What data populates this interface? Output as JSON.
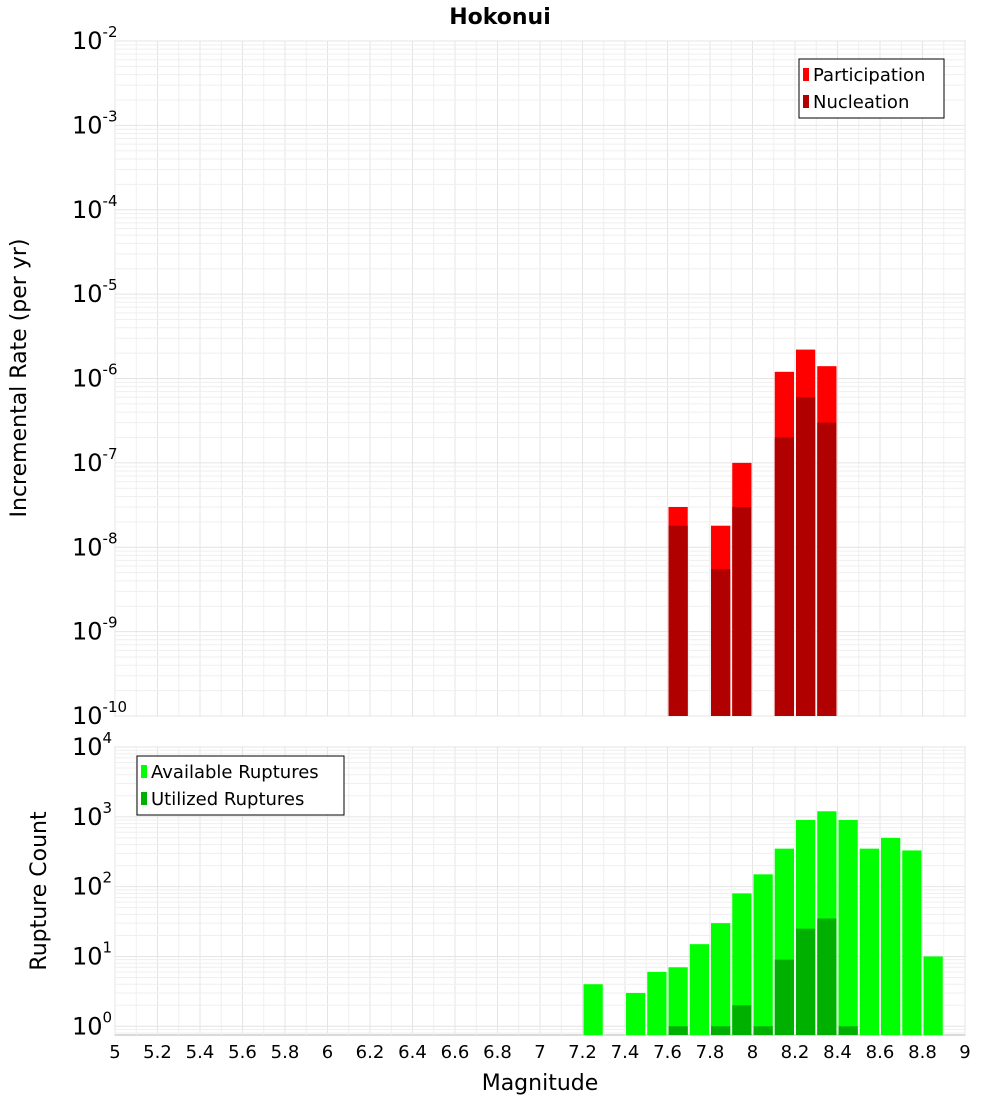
{
  "title": "Hokonui",
  "x_axis": {
    "label": "Magnitude",
    "ticks": [
      "5",
      "5.2",
      "5.4",
      "5.6",
      "5.8",
      "6",
      "6.2",
      "6.4",
      "6.6",
      "6.8",
      "7",
      "7.2",
      "7.4",
      "7.6",
      "7.8",
      "8",
      "8.2",
      "8.4",
      "8.6",
      "8.8",
      "9"
    ]
  },
  "chart_data": [
    {
      "type": "bar",
      "title": "Hokonui",
      "xlabel": "Magnitude",
      "ylabel": "Incremental Rate (per yr)",
      "xlim": [
        5,
        9
      ],
      "ylim": [
        1e-10,
        0.01
      ],
      "yscale": "log",
      "y_ticks": [
        {
          "base": "10",
          "exp": "-2"
        },
        {
          "base": "10",
          "exp": "-3"
        },
        {
          "base": "10",
          "exp": "-4"
        },
        {
          "base": "10",
          "exp": "-5"
        },
        {
          "base": "10",
          "exp": "-6"
        },
        {
          "base": "10",
          "exp": "-7"
        },
        {
          "base": "10",
          "exp": "-8"
        },
        {
          "base": "10",
          "exp": "-9"
        },
        {
          "base": "10",
          "exp": "-10"
        }
      ],
      "grid": true,
      "legend_position": "top-right",
      "bar_width": 0.1,
      "series": [
        {
          "name": "Participation",
          "color": "#ff0000",
          "x": [
            7.65,
            7.85,
            7.95,
            8.15,
            8.25,
            8.35
          ],
          "values": [
            3e-08,
            1.8e-08,
            1e-07,
            1.2e-06,
            2.2e-06,
            1.4e-06
          ]
        },
        {
          "name": "Nucleation",
          "color": "#b00000",
          "x": [
            7.65,
            7.85,
            7.95,
            8.15,
            8.25,
            8.35
          ],
          "values": [
            1.8e-08,
            5.5e-09,
            3e-08,
            2e-07,
            6e-07,
            3e-07
          ]
        }
      ]
    },
    {
      "type": "bar",
      "xlabel": "Magnitude",
      "ylabel": "Rupture Count",
      "xlim": [
        5,
        9
      ],
      "ylim": [
        0.75,
        10000
      ],
      "yscale": "log",
      "y_ticks": [
        {
          "base": "10",
          "exp": "4"
        },
        {
          "base": "10",
          "exp": "3"
        },
        {
          "base": "10",
          "exp": "2"
        },
        {
          "base": "10",
          "exp": "1"
        },
        {
          "base": "10",
          "exp": "0"
        }
      ],
      "grid": true,
      "legend_position": "top-left",
      "bar_width": 0.1,
      "series": [
        {
          "name": "Available Ruptures",
          "color": "#00ff00",
          "x": [
            7.25,
            7.45,
            7.55,
            7.65,
            7.75,
            7.85,
            7.95,
            8.05,
            8.15,
            8.25,
            8.35,
            8.45,
            8.55,
            8.65,
            8.75,
            8.85
          ],
          "values": [
            4,
            3,
            6,
            7,
            15,
            30,
            80,
            150,
            350,
            900,
            1200,
            900,
            350,
            500,
            330,
            10
          ]
        },
        {
          "name": "Utilized Ruptures",
          "color": "#00b000",
          "x": [
            7.65,
            7.85,
            7.95,
            8.05,
            8.15,
            8.25,
            8.35,
            8.45
          ],
          "values": [
            1,
            1,
            2,
            1,
            9,
            25,
            35,
            1
          ]
        }
      ]
    }
  ]
}
